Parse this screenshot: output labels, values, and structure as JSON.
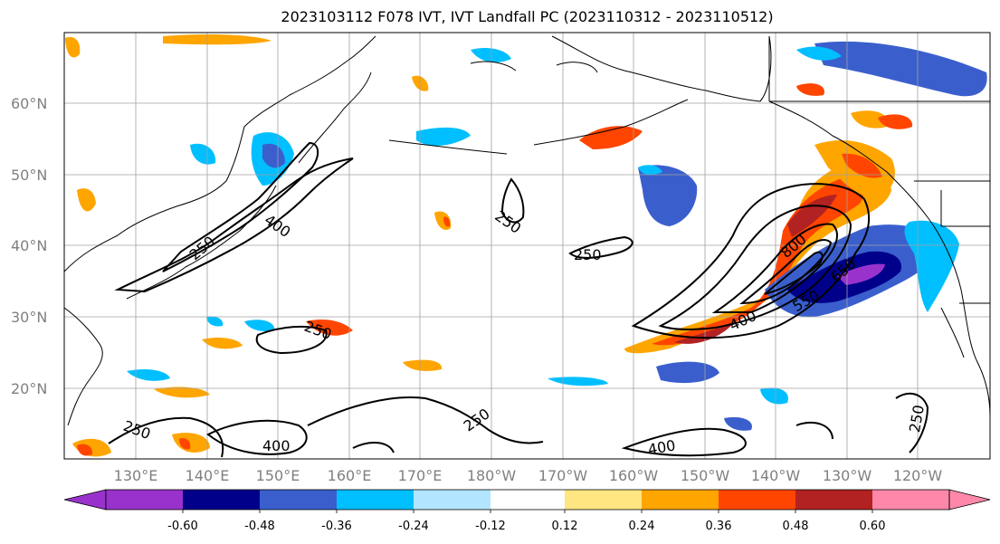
{
  "title": "2023103112 F078 IVT, IVT Landfall PC (2023110312 - 2023110512)",
  "map": {
    "lat_labels": [
      "20°N",
      "30°N",
      "40°N",
      "50°N",
      "60°N"
    ],
    "lon_labels": [
      "130°E",
      "140°E",
      "150°E",
      "160°E",
      "170°E",
      "180°W",
      "170°W",
      "160°W",
      "150°W",
      "140°W",
      "130°W",
      "120°W"
    ],
    "contour_labels": [
      "400",
      "250",
      "250",
      "250",
      "800",
      "650",
      "550",
      "400",
      "250",
      "250",
      "400",
      "250",
      "400",
      "250"
    ],
    "colors": {
      "negative": [
        "#9932cc",
        "#00008b",
        "#3a5fcd",
        "#00bfff",
        "#b2e5ff"
      ],
      "positive": [
        "#ffe680",
        "#ffa500",
        "#ff4500",
        "#b22222",
        "#ff88aa"
      ],
      "contour": "#000000",
      "coastline": "#000000",
      "grid": "#a0a0a0"
    }
  },
  "colorbar": {
    "ticks": [
      "-0.60",
      "-0.48",
      "-0.36",
      "-0.24",
      "-0.12",
      "0.12",
      "0.24",
      "0.36",
      "0.48",
      "0.60"
    ],
    "colors": [
      "#9932cc",
      "#00008b",
      "#3a5fcd",
      "#00bfff",
      "#00bfff",
      "#b2e5ff",
      "#ffffff",
      "#ffe680",
      "#ffa500",
      "#ff4500",
      "#b22222",
      "#ff88aa"
    ]
  }
}
